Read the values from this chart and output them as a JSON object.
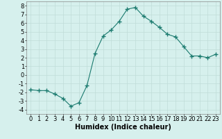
{
  "x": [
    0,
    1,
    2,
    3,
    4,
    5,
    6,
    7,
    8,
    9,
    10,
    11,
    12,
    13,
    14,
    15,
    16,
    17,
    18,
    19,
    20,
    21,
    22,
    23
  ],
  "y": [
    -1.7,
    -1.8,
    -1.8,
    -2.2,
    -2.7,
    -3.6,
    -3.2,
    -1.2,
    2.5,
    4.5,
    5.2,
    6.2,
    7.6,
    7.8,
    6.8,
    6.2,
    5.5,
    4.7,
    4.4,
    3.3,
    2.2,
    2.2,
    2.0,
    2.4
  ],
  "line_color": "#1a7a6e",
  "marker": "+",
  "marker_size": 4,
  "bg_color": "#d6f0ed",
  "grid_color": "#c0dcd8",
  "xlabel": "Humidex (Indice chaleur)",
  "xlabel_fontsize": 7,
  "tick_fontsize": 6,
  "xlim": [
    -0.5,
    23.5
  ],
  "ylim": [
    -4.5,
    8.5
  ],
  "yticks": [
    -4,
    -3,
    -2,
    -1,
    0,
    1,
    2,
    3,
    4,
    5,
    6,
    7,
    8
  ],
  "xticks": [
    0,
    1,
    2,
    3,
    4,
    5,
    6,
    7,
    8,
    9,
    10,
    11,
    12,
    13,
    14,
    15,
    16,
    17,
    18,
    19,
    20,
    21,
    22,
    23
  ]
}
